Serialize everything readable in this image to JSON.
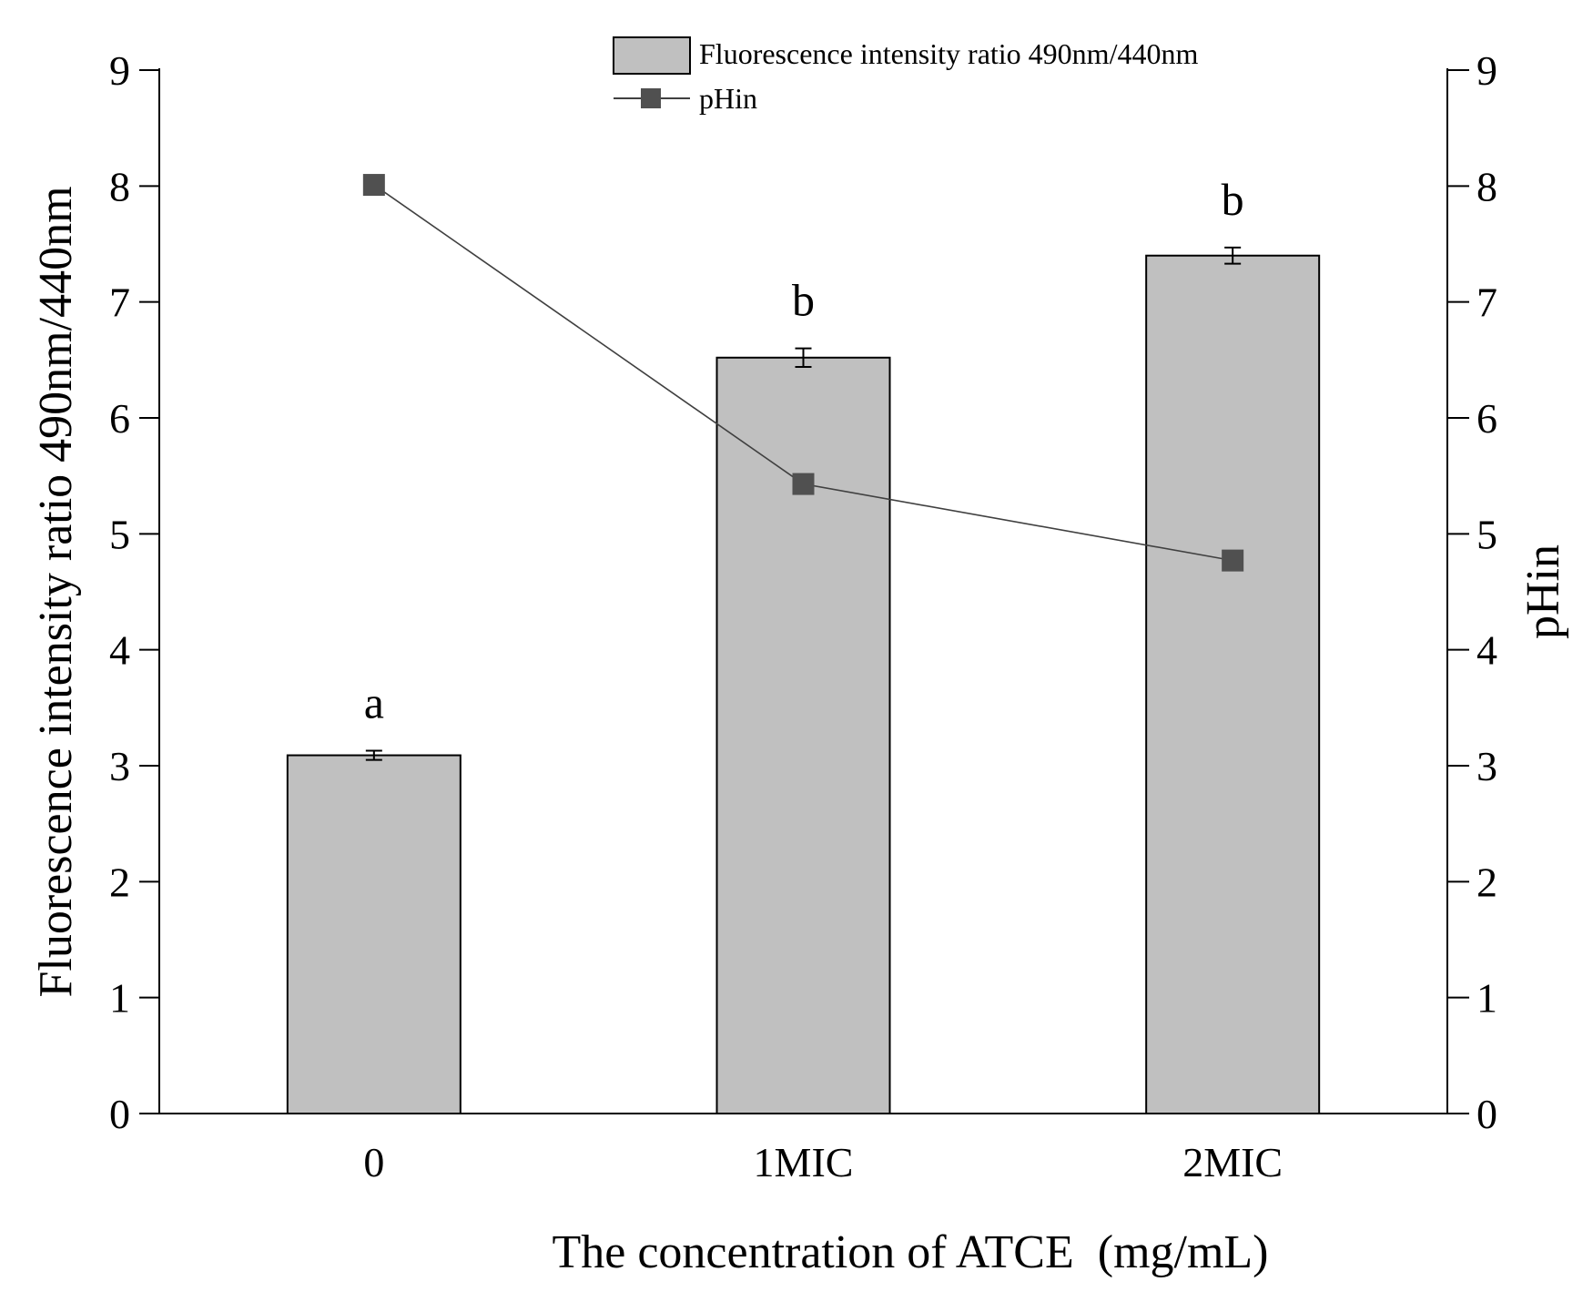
{
  "chart_data": {
    "type": "bar+line",
    "categories": [
      "0",
      "1MIC",
      "2MIC"
    ],
    "xlabel": "The concentration of ATCE  (mg/mL)",
    "ylabel_left": "Fluorescence intensity ratio 490nm/440nm",
    "ylabel_right": "pHin",
    "ylim_left": [
      0,
      9
    ],
    "ylim_right": [
      0,
      9
    ],
    "yticks_left": [
      "0",
      "1",
      "2",
      "3",
      "4",
      "5",
      "6",
      "7",
      "8",
      "9"
    ],
    "yticks_right": [
      "0",
      "1",
      "2",
      "3",
      "4",
      "5",
      "6",
      "7",
      "8",
      "9"
    ],
    "grid": false,
    "series": [
      {
        "name": "Fluorescence intensity ratio 490nm/440nm",
        "kind": "bar",
        "axis": "left",
        "values": [
          3.09,
          6.52,
          7.4
        ],
        "errors": [
          0.04,
          0.08,
          0.07
        ],
        "significance": [
          "a",
          "b",
          "b"
        ],
        "color": "#c0c0c0",
        "edge_color": "#000000"
      },
      {
        "name": "pHin",
        "kind": "line",
        "axis": "right",
        "marker": "square",
        "values": [
          8.01,
          5.43,
          4.77
        ],
        "color": "#505050",
        "line_color": "#404040"
      }
    ],
    "legend": {
      "placement": "top-center",
      "entries": [
        "Fluorescence intensity ratio 490nm/440nm",
        "pHin"
      ]
    }
  }
}
